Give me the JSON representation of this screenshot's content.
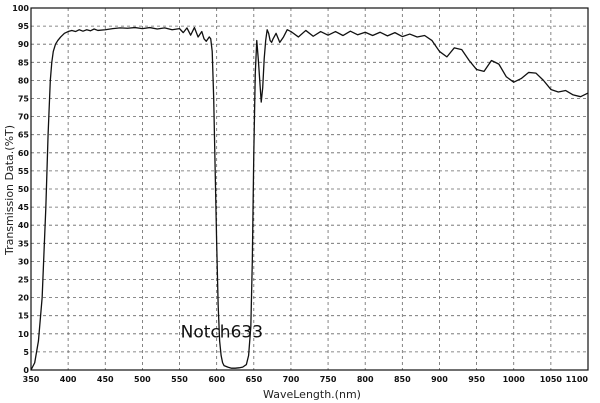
{
  "chart_data": {
    "type": "line",
    "title": "",
    "xlabel": "WaveLength.(nm)",
    "ylabel": "Transmission Data.(%T)",
    "xlim": [
      350,
      1100
    ],
    "ylim": [
      0,
      100
    ],
    "xticks": [
      350,
      400,
      450,
      500,
      550,
      600,
      650,
      700,
      750,
      800,
      850,
      900,
      950,
      1000,
      1050,
      1100
    ],
    "yticks": [
      0,
      5,
      10,
      15,
      20,
      25,
      30,
      35,
      40,
      45,
      50,
      55,
      60,
      65,
      70,
      75,
      80,
      85,
      90,
      95,
      100
    ],
    "grid": true,
    "annotation": {
      "text": "Notch633",
      "x": 607,
      "y": 9
    },
    "series": [
      {
        "x": [
          350,
          355,
          360,
          365,
          370,
          373,
          376,
          378,
          380,
          383,
          386,
          390,
          395,
          400,
          405,
          410,
          415,
          420,
          425,
          430,
          435,
          440,
          450,
          460,
          470,
          480,
          490,
          500,
          510,
          520,
          530,
          540,
          550,
          555,
          560,
          565,
          570,
          575,
          580,
          583,
          586,
          590,
          592,
          594,
          596,
          598,
          600,
          602,
          604,
          606,
          608,
          610,
          615,
          620,
          625,
          630,
          635,
          640,
          643,
          646,
          648,
          650,
          652,
          654,
          656,
          658,
          660,
          662,
          664,
          666,
          668,
          670,
          672,
          674,
          676,
          680,
          685,
          690,
          695,
          700,
          710,
          720,
          730,
          740,
          750,
          760,
          770,
          780,
          790,
          800,
          810,
          820,
          830,
          840,
          850,
          860,
          870,
          880,
          890,
          900,
          910,
          920,
          930,
          940,
          950,
          960,
          970,
          980,
          990,
          1000,
          1010,
          1020,
          1030,
          1040,
          1050,
          1060,
          1070,
          1080,
          1090,
          1100
        ],
        "y": [
          0,
          2,
          8,
          20,
          45,
          65,
          80,
          85,
          88,
          90,
          91,
          92,
          93,
          93.5,
          93.8,
          93.5,
          94,
          93.6,
          94,
          93.7,
          94.2,
          93.8,
          94,
          94.3,
          94.5,
          94.4,
          94.6,
          94.3,
          94.6,
          94.2,
          94.5,
          94,
          94.3,
          93.2,
          94.5,
          92.5,
          94.6,
          92,
          93.5,
          91.5,
          90.8,
          92,
          91.5,
          88,
          75,
          55,
          35,
          18,
          8,
          4,
          2,
          1.2,
          0.8,
          0.5,
          0.5,
          0.6,
          0.8,
          1.5,
          4,
          12,
          30,
          60,
          82,
          91,
          86,
          80,
          74,
          78,
          86,
          91,
          94,
          93,
          91,
          90.5,
          91.5,
          93,
          90.5,
          92,
          94,
          93.5,
          92,
          93.8,
          92.2,
          93.5,
          92.5,
          93.5,
          92.4,
          93.6,
          92.6,
          93.3,
          92.4,
          93.3,
          92.3,
          93.2,
          92.1,
          92.8,
          92,
          92.4,
          91,
          88,
          86.5,
          89,
          88.5,
          85.5,
          83,
          82.5,
          85.5,
          84.5,
          81,
          79.5,
          80.5,
          82.2,
          82,
          80,
          77.5,
          76.8,
          77.2,
          76,
          75.5,
          76.5
        ]
      }
    ]
  }
}
